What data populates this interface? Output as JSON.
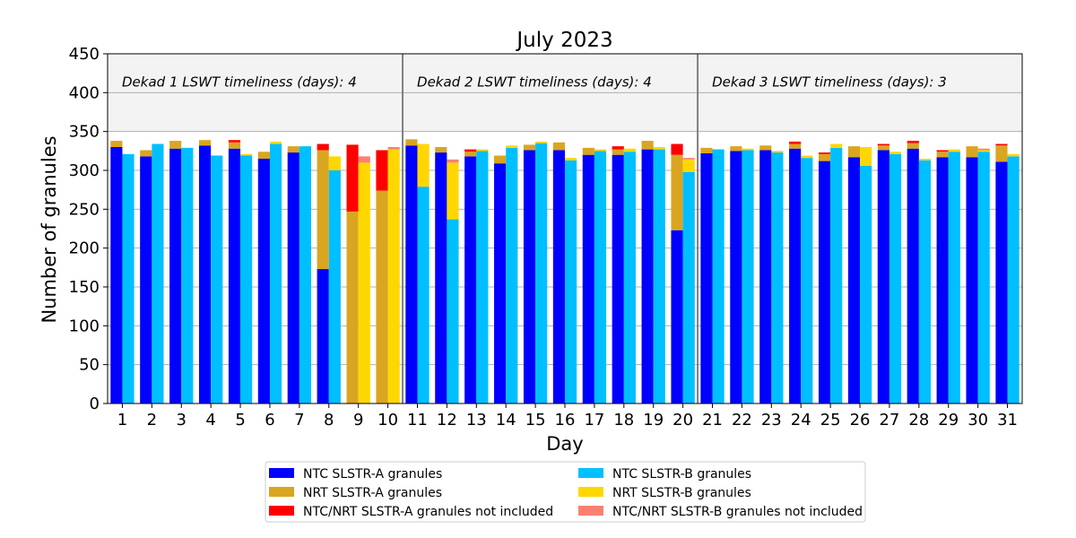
{
  "chart_data": {
    "type": "bar",
    "title": "July 2023",
    "xlabel": "Day",
    "ylabel": "Number of granules",
    "ylim": [
      0,
      450
    ],
    "yticks": [
      0,
      50,
      100,
      150,
      200,
      250,
      300,
      350,
      400,
      450
    ],
    "grid": true,
    "highlight_band": [
      350,
      450
    ],
    "categories": [
      "1",
      "2",
      "3",
      "4",
      "5",
      "6",
      "7",
      "8",
      "9",
      "10",
      "11",
      "12",
      "13",
      "14",
      "15",
      "16",
      "17",
      "18",
      "19",
      "20",
      "21",
      "22",
      "23",
      "24",
      "25",
      "26",
      "27",
      "28",
      "29",
      "30",
      "31"
    ],
    "dekad_separators": [
      10.5,
      20.5
    ],
    "annotations": [
      {
        "text": "Dekad 1 LSWT timeliness (days): 4",
        "x_start": 0.5
      },
      {
        "text": "Dekad 2 LSWT timeliness (days): 4",
        "x_start": 10.5
      },
      {
        "text": "Dekad 3 LSWT timeliness (days): 3",
        "x_start": 20.5
      }
    ],
    "stacks": {
      "A": [
        "NTC SLSTR-A granules",
        "NRT SLSTR-A granules",
        "NTC/NRT SLSTR-A granules not included"
      ],
      "B": [
        "NTC SLSTR-B granules",
        "NRT SLSTR-B granules",
        "NTC/NRT SLSTR-B granules not included"
      ]
    },
    "series": [
      {
        "name": "NTC SLSTR-A granules",
        "color": "#0000ff",
        "stack": "A",
        "values": [
          330,
          318,
          328,
          332,
          328,
          315,
          323,
          173,
          0,
          0,
          332,
          323,
          318,
          309,
          326,
          326,
          320,
          320,
          327,
          223,
          322,
          325,
          326,
          328,
          312,
          317,
          326,
          328,
          317,
          317,
          311
        ]
      },
      {
        "name": "NRT SLSTR-A granules",
        "color": "#daa520",
        "stack": "A",
        "values": [
          8,
          8,
          10,
          7,
          8,
          9,
          8,
          153,
          247,
          274,
          8,
          7,
          6,
          10,
          7,
          10,
          9,
          7,
          11,
          97,
          7,
          6,
          6,
          6,
          9,
          14,
          6,
          7,
          7,
          14,
          21
        ]
      },
      {
        "name": "NTC/NRT SLSTR-A granules not included",
        "color": "#ff0000",
        "stack": "A",
        "values": [
          0,
          0,
          0,
          0,
          3,
          0,
          0,
          8,
          86,
          52,
          0,
          0,
          3,
          0,
          0,
          0,
          0,
          4,
          0,
          14,
          0,
          0,
          0,
          3,
          2,
          0,
          2,
          3,
          2,
          0,
          2
        ]
      },
      {
        "name": "NTC SLSTR-B granules",
        "color": "#00bfff",
        "stack": "B",
        "values": [
          321,
          334,
          329,
          319,
          319,
          334,
          331,
          300,
          0,
          0,
          279,
          237,
          325,
          329,
          335,
          313,
          325,
          324,
          327,
          298,
          327,
          326,
          323,
          316,
          329,
          306,
          321,
          313,
          324,
          324,
          318
        ]
      },
      {
        "name": "NRT SLSTR-B granules",
        "color": "#ffd700",
        "stack": "B",
        "values": [
          0,
          0,
          0,
          0,
          2,
          3,
          0,
          18,
          310,
          327,
          55,
          73,
          2,
          3,
          2,
          3,
          2,
          4,
          3,
          16,
          0,
          2,
          2,
          3,
          5,
          24,
          3,
          2,
          3,
          2,
          3
        ]
      },
      {
        "name": "NTC/NRT SLSTR-B granules not included",
        "color": "#fa8072",
        "stack": "B",
        "values": [
          0,
          0,
          0,
          0,
          0,
          0,
          0,
          0,
          8,
          3,
          0,
          4,
          0,
          0,
          0,
          0,
          0,
          0,
          0,
          2,
          0,
          0,
          0,
          0,
          0,
          0,
          0,
          0,
          0,
          2,
          0
        ]
      }
    ],
    "legend": {
      "placement": "bottom-center",
      "columns": 2,
      "entries": [
        {
          "label": "NTC SLSTR-A granules",
          "color": "#0000ff"
        },
        {
          "label": "NRT SLSTR-A granules",
          "color": "#daa520"
        },
        {
          "label": "NTC/NRT SLSTR-A granules not included",
          "color": "#ff0000"
        },
        {
          "label": "NTC SLSTR-B granules",
          "color": "#00bfff"
        },
        {
          "label": "NRT SLSTR-B granules",
          "color": "#ffd700"
        },
        {
          "label": "NTC/NRT SLSTR-B granules not included",
          "color": "#fa8072"
        }
      ]
    }
  }
}
